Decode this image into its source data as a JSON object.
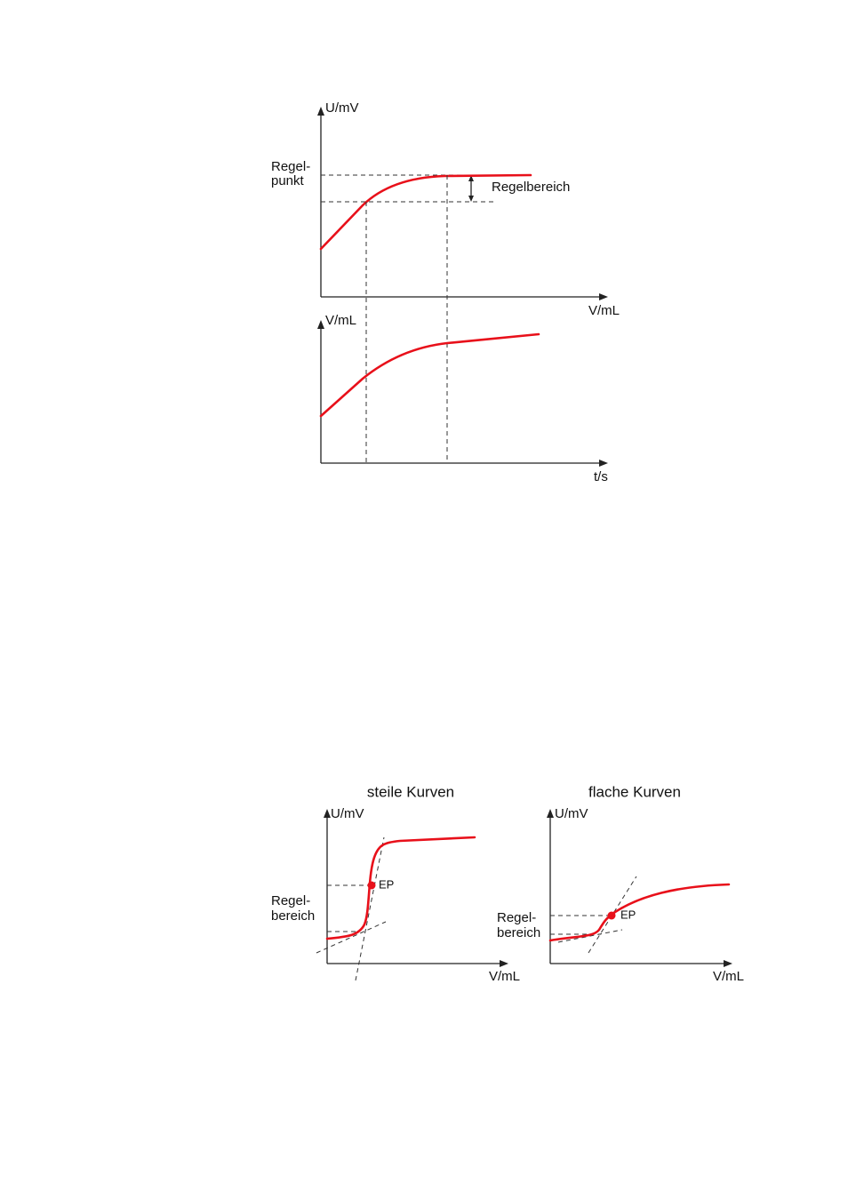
{
  "diagram1": {
    "top_y_axis": "U/mV",
    "setpoint_label": [
      "Regel-",
      "punkt"
    ],
    "control_range": "Regelbereich",
    "top_x_axis": "V/mL",
    "bottom_y_axis": "V/mL",
    "bottom_x_axis": "t/s"
  },
  "diagram2": {
    "panels": [
      {
        "title": "steile Kurven",
        "y_axis": "U/mV",
        "range_label": [
          "Regel-",
          "bereich"
        ],
        "point": "EP",
        "x_axis": "V/mL"
      },
      {
        "title": "flache Kurven",
        "y_axis": "U/mV",
        "range_label": [
          "Regel-",
          "bereich"
        ],
        "point": "EP",
        "x_axis": "V/mL"
      }
    ]
  }
}
